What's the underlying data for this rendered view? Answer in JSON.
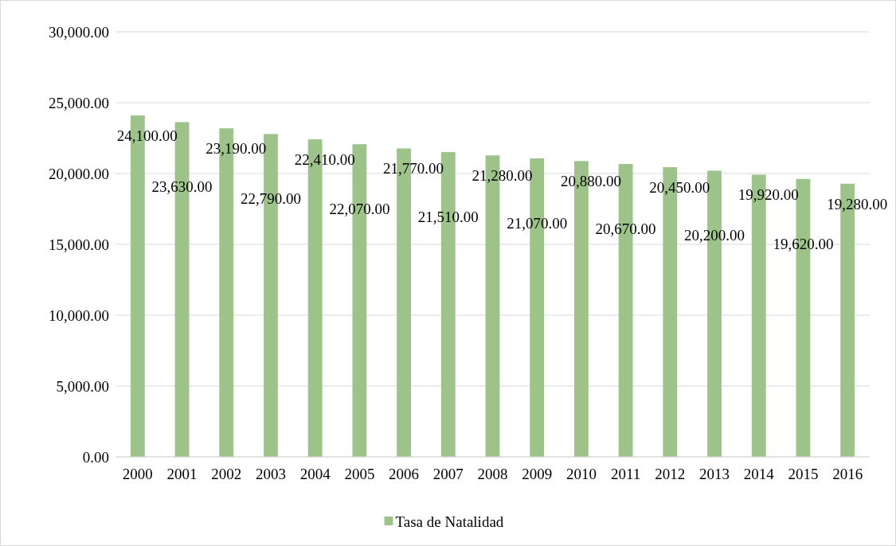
{
  "chart_data": {
    "type": "bar",
    "categories": [
      "2000",
      "2001",
      "2002",
      "2003",
      "2004",
      "2005",
      "2006",
      "2007",
      "2008",
      "2009",
      "2010",
      "2011",
      "2012",
      "2013",
      "2014",
      "2015",
      "2016"
    ],
    "series": [
      {
        "name": "Tasa de Natalidad",
        "color": "#9dc38a",
        "values": [
          24100,
          23630,
          23190,
          22790,
          22410,
          22070,
          21770,
          21510,
          21280,
          21070,
          20880,
          20670,
          20450,
          20200,
          19920,
          19620,
          19280
        ],
        "value_labels": [
          "24,100.00",
          "23,630.00",
          "23,190.00",
          "22,790.00",
          "22,410.00",
          "22,070.00",
          "21,770.00",
          "21,510.00",
          "21,280.00",
          "21,070.00",
          "20,880.00",
          "20,670.00",
          "20,450.00",
          "20,200.00",
          "19,920.00",
          "19,620.00",
          "19,280.00"
        ]
      }
    ],
    "ylim": [
      0,
      30000
    ],
    "yticks": [
      {
        "value": 0,
        "label": "0.00"
      },
      {
        "value": 5000,
        "label": "5,000.00"
      },
      {
        "value": 10000,
        "label": "10,000.00"
      },
      {
        "value": 15000,
        "label": "15,000.00"
      },
      {
        "value": 20000,
        "label": "20,000.00"
      },
      {
        "value": 25000,
        "label": "25,000.00"
      },
      {
        "value": 30000,
        "label": "30,000.00"
      }
    ],
    "grid": "y",
    "legend": "bottom"
  }
}
